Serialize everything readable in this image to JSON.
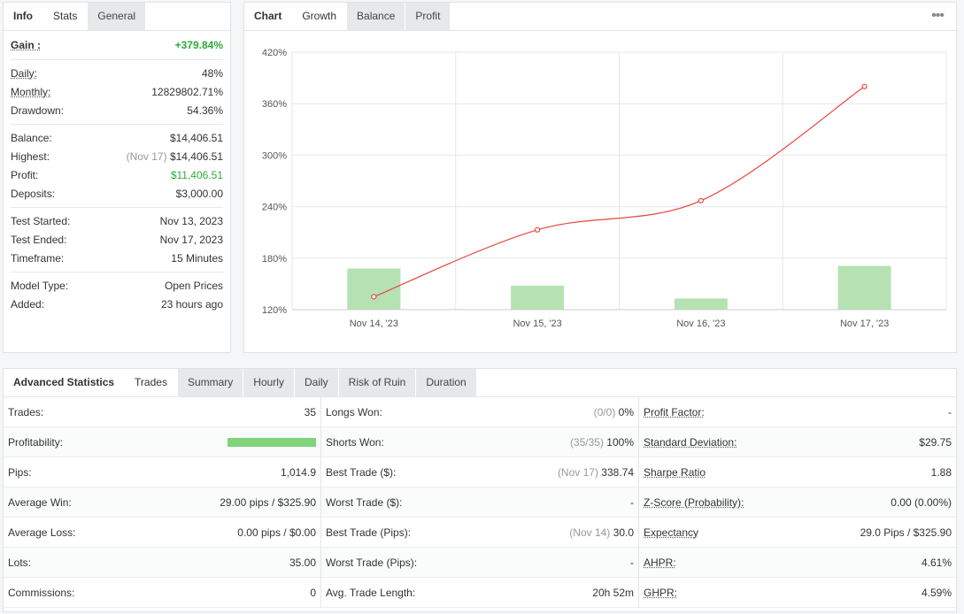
{
  "info_panel": {
    "tabs": [
      "Info",
      "Stats",
      "General"
    ],
    "gain": {
      "label": "Gain :",
      "value": "+379.84%"
    },
    "rows1": [
      {
        "label": "Daily:",
        "value": "48%"
      },
      {
        "label": "Monthly:",
        "value": "12829802.71%"
      },
      {
        "label": "Drawdown:",
        "value": "54.36%"
      }
    ],
    "balance": {
      "label": "Balance:",
      "value": "$14,406.51"
    },
    "highest": {
      "label": "Highest:",
      "date": "(Nov 17)",
      "value": "$14,406.51"
    },
    "profit": {
      "label": "Profit:",
      "value": "$11,406.51"
    },
    "deposits": {
      "label": "Deposits:",
      "value": "$3,000.00"
    },
    "rows3": [
      {
        "label": "Test Started:",
        "value": "Nov 13, 2023"
      },
      {
        "label": "Test Ended:",
        "value": "Nov 17, 2023"
      },
      {
        "label": "Timeframe:",
        "value": "15 Minutes"
      }
    ],
    "rows4": [
      {
        "label": "Model Type:",
        "value": "Open Prices"
      },
      {
        "label": "Added:",
        "value": "23 hours ago"
      }
    ]
  },
  "chart_panel": {
    "tabs": [
      "Chart",
      "Growth",
      "Balance",
      "Profit"
    ],
    "more_icon": "ellipsis-icon"
  },
  "chart_data": {
    "type": "line",
    "categories": [
      "Nov 14, '23",
      "Nov 15, '23",
      "Nov 16, '23",
      "Nov 17, '23"
    ],
    "yticks": [
      "420%",
      "360%",
      "300%",
      "240%",
      "180%",
      "120%"
    ],
    "ylim": [
      120,
      420
    ],
    "series": [
      {
        "type": "line",
        "values": [
          135,
          213,
          247,
          380
        ],
        "color": "#e8473f"
      },
      {
        "type": "bar",
        "values": [
          168,
          148,
          133,
          171
        ],
        "color": "#b6e2b3"
      }
    ],
    "grid": true
  },
  "advanced": {
    "tabs": [
      "Advanced Statistics",
      "Trades",
      "Summary",
      "Hourly",
      "Daily",
      "Risk of Ruin",
      "Duration"
    ],
    "col1": [
      {
        "label": "Trades:",
        "value": "35"
      },
      {
        "label": "Profitability:",
        "value": "",
        "bar": 1.0
      },
      {
        "label": "Pips:",
        "value": "1,014.9"
      },
      {
        "label": "Average Win:",
        "value": "29.00 pips / $325.90"
      },
      {
        "label": "Average Loss:",
        "value": "0.00 pips / $0.00"
      },
      {
        "label": "Lots:",
        "value": "35.00"
      },
      {
        "label": "Commissions:",
        "value": "0"
      }
    ],
    "col2": [
      {
        "label": "Longs Won:",
        "muted": "(0/0)",
        "value": "0%"
      },
      {
        "label": "Shorts Won:",
        "muted": "(35/35)",
        "value": "100%"
      },
      {
        "label": "Best Trade ($):",
        "muted": "(Nov 17)",
        "value": "338.74"
      },
      {
        "label": "Worst Trade ($):",
        "muted": "",
        "value": "-"
      },
      {
        "label": "Best Trade (Pips):",
        "muted": "(Nov 14)",
        "value": "30.0"
      },
      {
        "label": "Worst Trade (Pips):",
        "muted": "",
        "value": "-"
      },
      {
        "label": "Avg. Trade Length:",
        "muted": "",
        "value": "20h 52m"
      }
    ],
    "col3": [
      {
        "label": "Profit Factor:",
        "value": "-"
      },
      {
        "label": "Standard Deviation:",
        "value": "$29.75"
      },
      {
        "label": "Sharpe Ratio",
        "value": "1.88"
      },
      {
        "label": "Z-Score (Probability):",
        "value": "0.00 (0.00%)"
      },
      {
        "label": "Expectancy",
        "value": "29.0 Pips / $325.90"
      },
      {
        "label": "AHPR:",
        "value": "4.61%"
      },
      {
        "label": "GHPR:",
        "value": "4.59%"
      }
    ]
  }
}
